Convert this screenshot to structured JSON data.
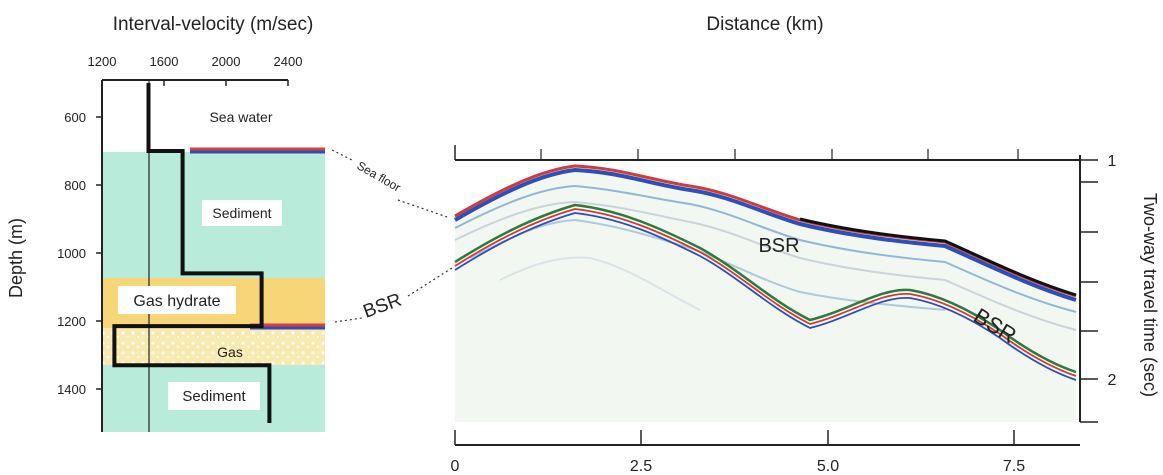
{
  "left_panel": {
    "title": "Interval-velocity (m/sec)",
    "x_ticks": [
      "1200",
      "1600",
      "2000",
      "2400"
    ],
    "y_label": "Depth (m)",
    "y_ticks": [
      "600",
      "800",
      "1000",
      "1200",
      "1400"
    ],
    "layers": {
      "sea_water": "Sea water",
      "sediment_upper": "Sediment",
      "gas_hydrate": "Gas hydrate",
      "gas": "Gas",
      "sediment_lower": "Sediment"
    },
    "colors": {
      "sediment": "#b8ebd9",
      "hydrate": "#f7d677",
      "gas": "#f4e7a6"
    },
    "velocity_profile": [
      {
        "depth": 500,
        "velocity": 1500
      },
      {
        "depth": 700,
        "velocity": 1500
      },
      {
        "depth": 700,
        "velocity": 1720
      },
      {
        "depth": 1060,
        "velocity": 1720
      },
      {
        "depth": 1060,
        "velocity": 2230
      },
      {
        "depth": 1215,
        "velocity": 2230
      },
      {
        "depth": 1215,
        "velocity": 1280
      },
      {
        "depth": 1330,
        "velocity": 1280
      },
      {
        "depth": 1330,
        "velocity": 2280
      },
      {
        "depth": 1500,
        "velocity": 2280
      }
    ]
  },
  "right_panel": {
    "title": "Distance (km)",
    "x_ticks": [
      "0",
      "2.5",
      "5.0",
      "7.5"
    ],
    "y_label": "Two-way travel time (sec)",
    "y_ticks": [
      "1",
      "2"
    ],
    "bsr_label_1": "BSR",
    "bsr_label_2": "BSR"
  },
  "connectors": {
    "sea_floor": "Sea floor",
    "bsr": "BSR"
  }
}
